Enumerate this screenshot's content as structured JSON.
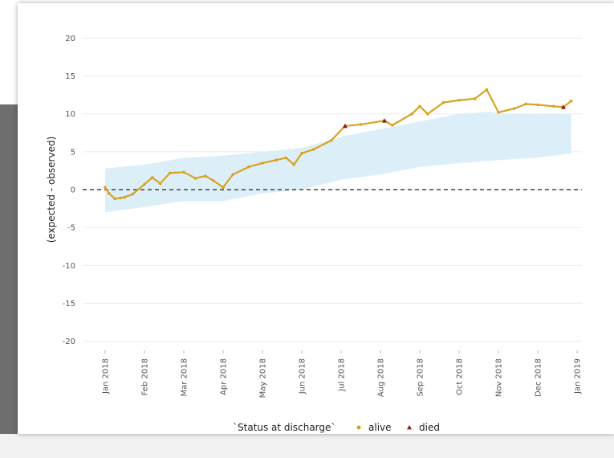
{
  "chart_data": {
    "type": "line",
    "ylabel": "(expected - observed)",
    "xlim": [
      -0.57,
      12.12
    ],
    "xticks": [
      {
        "value": 0,
        "label": "Jan 2018"
      },
      {
        "value": 1,
        "label": "Feb 2018"
      },
      {
        "value": 2,
        "label": "Mar 2018"
      },
      {
        "value": 3,
        "label": "Apr 2018"
      },
      {
        "value": 4,
        "label": "May 2018"
      },
      {
        "value": 5,
        "label": "Jun 2018"
      },
      {
        "value": 6,
        "label": "Jul 2018"
      },
      {
        "value": 7,
        "label": "Aug 2018"
      },
      {
        "value": 8,
        "label": "Sep 2018"
      },
      {
        "value": 9,
        "label": "Oct 2018"
      },
      {
        "value": 10,
        "label": "Nov 2018"
      },
      {
        "value": 11,
        "label": "Dec 2018"
      },
      {
        "value": 12,
        "label": "Jan 2019"
      }
    ],
    "ylim": [
      -21,
      21
    ],
    "yticks": [
      -20,
      -15,
      -10,
      -5,
      0,
      5,
      10,
      15,
      20
    ],
    "grid": true,
    "hline": 0,
    "band": {
      "color": "#dceff9",
      "x": [
        0,
        1,
        2,
        3,
        4,
        5,
        6,
        7,
        8,
        9,
        9.8,
        10,
        11,
        11.85
      ],
      "lower": [
        -3,
        -2.3,
        -1.5,
        -1.5,
        -0.5,
        0,
        1.3,
        2,
        3,
        3.5,
        3.8,
        3.9,
        4.2,
        4.8
      ],
      "upper": [
        2.8,
        3.3,
        4.2,
        4.5,
        5,
        5.5,
        7,
        8,
        9,
        10,
        10.3,
        10,
        10,
        10
      ]
    },
    "legend_title": "`Status at discharge`",
    "series": [
      {
        "name": "alive",
        "color": "#d9a321",
        "marker": "circle",
        "x": [
          0,
          0.1,
          0.25,
          0.39,
          0.5,
          0.7,
          1.0,
          1.2,
          1.4,
          1.65,
          2.0,
          2.3,
          2.55,
          2.75,
          3.0,
          3.25,
          3.65,
          4.0,
          4.35,
          4.6,
          4.8,
          5.0,
          5.3,
          5.75,
          6.1,
          6.5,
          7.1,
          7.3,
          7.8,
          8.0,
          8.2,
          8.6,
          9.0,
          9.4,
          9.7,
          10.0,
          10.4,
          10.7,
          11.0,
          11.4,
          11.65,
          11.85
        ],
        "values": [
          0.3,
          -0.5,
          -1.2,
          -1.1,
          -1.0,
          -0.6,
          0.7,
          1.6,
          0.8,
          2.2,
          2.3,
          1.5,
          1.8,
          1.2,
          0.3,
          2,
          3,
          3.5,
          3.9,
          4.2,
          3.3,
          4.8,
          5.3,
          6.5,
          8.4,
          8.6,
          9.1,
          8.5,
          10,
          11,
          10,
          11.5,
          11.8,
          12,
          13.2,
          10.2,
          10.7,
          11.3,
          11.2,
          11,
          10.9,
          11.7
        ]
      },
      {
        "name": "died",
        "color": "#8b1a1a",
        "marker": "triangle",
        "x": [
          6.1,
          7.1,
          11.65
        ],
        "values": [
          8.4,
          9.1,
          10.9
        ]
      }
    ]
  }
}
